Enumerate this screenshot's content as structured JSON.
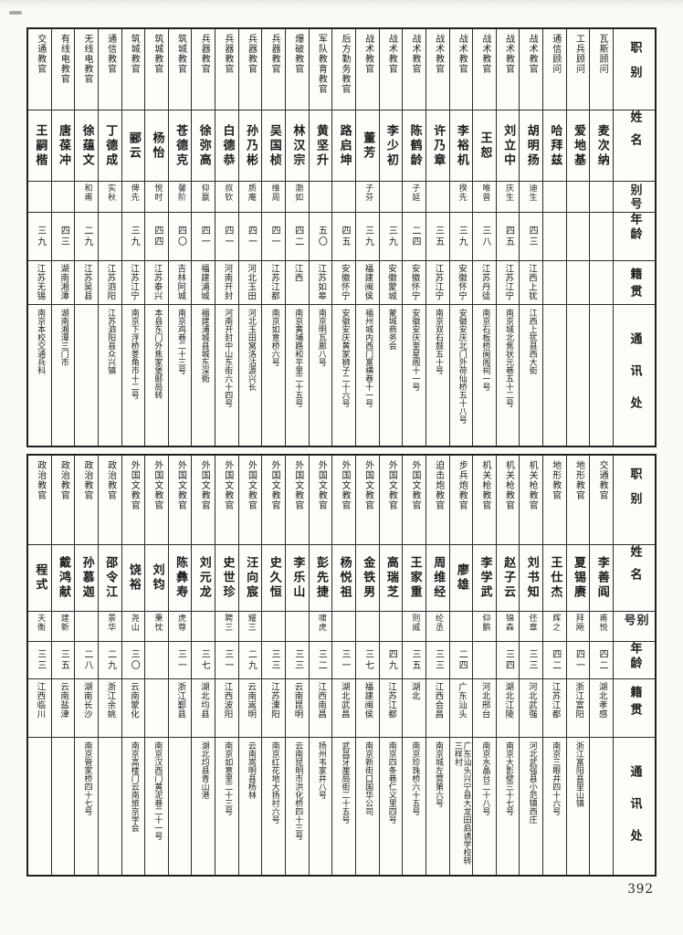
{
  "page": {
    "number": "392"
  },
  "headers": {
    "position": "职别",
    "name": "姓名",
    "alias": "别号",
    "age": "年龄",
    "native_place": "籍贯",
    "address": "通讯处"
  },
  "tables": [
    {
      "id": "top",
      "people": [
        {
          "position": "瓦斯顾问",
          "name": "麦次纳",
          "alias": "",
          "age": "",
          "native_place": "",
          "address": ""
        },
        {
          "position": "工兵顾问",
          "name": "爱地基",
          "alias": "",
          "age": "",
          "native_place": "",
          "address": ""
        },
        {
          "position": "通信顾问",
          "name": "哈拜兹",
          "alias": "",
          "age": "",
          "native_place": "",
          "address": ""
        },
        {
          "position": "战术教官",
          "name": "胡明扬",
          "alias": "迪生",
          "age": "四三",
          "native_place": "江西上犹",
          "address": "江西上犹县西大街"
        },
        {
          "position": "战术教官",
          "name": "刘立中",
          "alias": "庆生",
          "age": "四五",
          "native_place": "江苏江宁",
          "address": "南京城北焦状元巷五十二号"
        },
        {
          "position": "战术教官",
          "name": "王恕",
          "alias": "唯曾",
          "age": "三八",
          "native_place": "江苏丹徒",
          "address": "南京石板桥闽阁祠一号"
        },
        {
          "position": "战术教官",
          "name": "李裕机",
          "alias": "揆先",
          "age": "三九",
          "native_place": "安徽怀宁",
          "address": "安徽安庆北门外荷仙桥五十八号"
        },
        {
          "position": "战术教官",
          "name": "许乃章",
          "alias": "",
          "age": "三五",
          "native_place": "江苏江宁",
          "address": "南京双石鼓五十号"
        },
        {
          "position": "战术教官",
          "name": "陈鹤龄",
          "alias": "子延",
          "age": "二四",
          "native_place": "安徽怀宁",
          "address": "安徽安庆奎星阁十一号"
        },
        {
          "position": "战术教官",
          "name": "李少初",
          "alias": "",
          "age": "三九",
          "native_place": "安徽蒙城",
          "address": "蒙城商务会"
        },
        {
          "position": "战术教官",
          "name": "董芳",
          "alias": "子芬",
          "age": "三九",
          "native_place": "福建闽侯",
          "address": "福州城内西门富横巷十一号"
        },
        {
          "position": "后方勤务教官",
          "name": "路启坤",
          "alias": "",
          "age": "四五",
          "native_place": "安徽怀宁",
          "address": "安徽安庆黄家狮子二十六号"
        },
        {
          "position": "军队教育教官",
          "name": "黄坚升",
          "alias": "",
          "age": "五〇",
          "native_place": "江苏如皋",
          "address": "南京明瓦廊八号"
        },
        {
          "position": "爆破教官",
          "name": "林汉宗",
          "alias": "渤如",
          "age": "四二",
          "native_place": "江西",
          "address": "南京黄埔路和平里二十五号"
        },
        {
          "position": "兵器教官",
          "name": "吴国桢",
          "alias": "维周",
          "age": "四一",
          "native_place": "江苏江都",
          "address": "南京如意桥六号"
        },
        {
          "position": "兵器教官",
          "name": "孙乃彬",
          "alias": "质庵",
          "age": "四一",
          "native_place": "河北玉田",
          "address": "河北玉田窝洛沽源兴长"
        },
        {
          "position": "兵器教官",
          "name": "白德恭",
          "alias": "叔钦",
          "age": "四一",
          "native_place": "河南开封",
          "address": "河南开封中山东街六十四号"
        },
        {
          "position": "兵器教官",
          "name": "徐弥高",
          "alias": "仰嬴",
          "age": "四一",
          "native_place": "福建浦城",
          "address": "福建浦城县城东深衕"
        },
        {
          "position": "筑城教官",
          "name": "苍德克",
          "alias": "馨阶",
          "age": "四〇",
          "native_place": "吉林阿城",
          "address": "南京鸡巷二十三号"
        },
        {
          "position": "筑城教官",
          "name": "杨怡",
          "alias": "悦时",
          "age": "四四",
          "native_place": "江苏泰兴",
          "address": "本县东门外焦家堡邮局转"
        },
        {
          "position": "筑城教官",
          "name": "郦云",
          "alias": "俾先",
          "age": "三九",
          "native_place": "江苏江宁",
          "address": "南京下浮桥菱角市十二号"
        },
        {
          "position": "通信教官",
          "name": "丁德成",
          "alias": "实秋",
          "age": "",
          "native_place": "江苏泗阳",
          "address": "江苏泗阳县众兴镇"
        },
        {
          "position": "无线电教官",
          "name": "徐蕴文",
          "alias": "和甫",
          "age": "二九",
          "native_place": "江苏吴县",
          "address": ""
        },
        {
          "position": "有线电教官",
          "name": "唐葆冲",
          "alias": "",
          "age": "四三",
          "native_place": "湖南湘潭",
          "address": "湖南湘潭三门市"
        },
        {
          "position": "交通教官",
          "name": "王嗣楷",
          "alias": "",
          "age": "三九",
          "native_place": "江苏无锡",
          "address": "南京本校交通兵科"
        }
      ]
    },
    {
      "id": "bottom",
      "people": [
        {
          "position": "交通教官",
          "name": "李善阎",
          "alias": "甫悦",
          "age": "四二",
          "native_place": "湖北孝感",
          "address": ""
        },
        {
          "position": "地形教官",
          "name": "夏锡赓",
          "alias": "拜飏",
          "age": "四一",
          "native_place": "浙江富阳",
          "address": "浙江富阳县里山镇"
        },
        {
          "position": "地形教官",
          "name": "王仕杰",
          "alias": "辉之",
          "age": "四二",
          "native_place": "江苏江都",
          "address": "南京三眼井四十六号"
        },
        {
          "position": "机关枪教官",
          "name": "刘书知",
          "alias": "伾章",
          "age": "三三",
          "native_place": "河北武强",
          "address": "河北武强县小范镇西庄"
        },
        {
          "position": "机关枪教官",
          "name": "赵子云",
          "alias": "锦森",
          "age": "三四",
          "native_place": "湖北江陵",
          "address": "南京大影壁三十七号"
        },
        {
          "position": "机关枪教官",
          "name": "李学武",
          "alias": "仰鹏",
          "age": "",
          "native_place": "河北邢台",
          "address": "南京水晶台二十八号"
        },
        {
          "position": "步兵炮教官",
          "name": "廖雄",
          "alias": "",
          "age": "二四",
          "native_place": "广东汕头",
          "address": "广东汕头兴宁县大龙田启诱学校转三样村"
        },
        {
          "position": "迫击炮教官",
          "name": "周维经",
          "alias": "纶丞",
          "age": "三三",
          "native_place": "江西会昌",
          "address": "南京城左营第六号"
        },
        {
          "position": "外国文教官",
          "name": "王家重",
          "alias": "则威",
          "age": "三五",
          "native_place": "湖北",
          "address": "南京珍珠桥六十五号"
        },
        {
          "position": "外国文教官",
          "name": "高瑞芝",
          "alias": "",
          "age": "四九",
          "native_place": "江苏江都",
          "address": "南京四条巷仁义里四号"
        },
        {
          "position": "外国文教官",
          "name": "金铁男",
          "alias": "",
          "age": "三七",
          "native_place": "福建闽侯",
          "address": "南京新街口国华公司"
        },
        {
          "position": "外国文教官",
          "name": "杨悦祖",
          "alias": "",
          "age": "三一",
          "native_place": "湖北武昌",
          "address": "武昌牙厘局街二十五号"
        },
        {
          "position": "外国文教官",
          "name": "彭先捷",
          "alias": "啸虎",
          "age": "三二",
          "native_place": "江西南昌",
          "address": "扬州韦家井八号"
        },
        {
          "position": "外国文教官",
          "name": "李乐山",
          "alias": "",
          "age": "三三",
          "native_place": "云南昆明",
          "address": "云南昆明市洪化桥四十三号"
        },
        {
          "position": "外国文教官",
          "name": "史久恒",
          "alias": "",
          "age": "三三",
          "native_place": "江苏溧阳",
          "address": "南京红花地大扬村六号"
        },
        {
          "position": "外国文教官",
          "name": "汪向宸",
          "alias": "耀三",
          "age": "二九",
          "native_place": "云南嵩明",
          "address": "云南嵩明县杨林"
        },
        {
          "position": "外国文教官",
          "name": "史世珍",
          "alias": "聘三",
          "age": "三一",
          "native_place": "江西波阳",
          "address": "南京如意里二十三号"
        },
        {
          "position": "外国文教官",
          "name": "刘元龙",
          "alias": "",
          "age": "三七",
          "native_place": "湖北均县",
          "address": "湖北均县青山港"
        },
        {
          "position": "外国文教官",
          "name": "陈彝寿",
          "alias": "虎尊",
          "age": "三一",
          "native_place": "浙江鄞县",
          "address": ""
        },
        {
          "position": "外国文教官",
          "name": "刘钧",
          "alias": "秉忱",
          "age": "",
          "native_place": "",
          "address": "南京汉西门黄泥巷二十一号"
        },
        {
          "position": "外国文教官",
          "name": "饶裕",
          "alias": "尧山",
          "age": "三〇",
          "native_place": "云南蒙化",
          "address": "南京高楼门云南旅京学会"
        },
        {
          "position": "政治教官",
          "name": "邵令江",
          "alias": "景华",
          "age": "二九",
          "native_place": "浙江余姚",
          "address": ""
        },
        {
          "position": "政治教官",
          "name": "孙慕迦",
          "alias": "",
          "age": "二八",
          "native_place": "湖南长沙",
          "address": "南京管家桥四十七号"
        },
        {
          "position": "政治教官",
          "name": "戴鸿献",
          "alias": "建新",
          "age": "三五",
          "native_place": "云南盐津",
          "address": ""
        },
        {
          "position": "政治教官",
          "name": "程式",
          "alias": "天衡",
          "age": "三三",
          "native_place": "江西临川",
          "address": ""
        }
      ]
    }
  ]
}
